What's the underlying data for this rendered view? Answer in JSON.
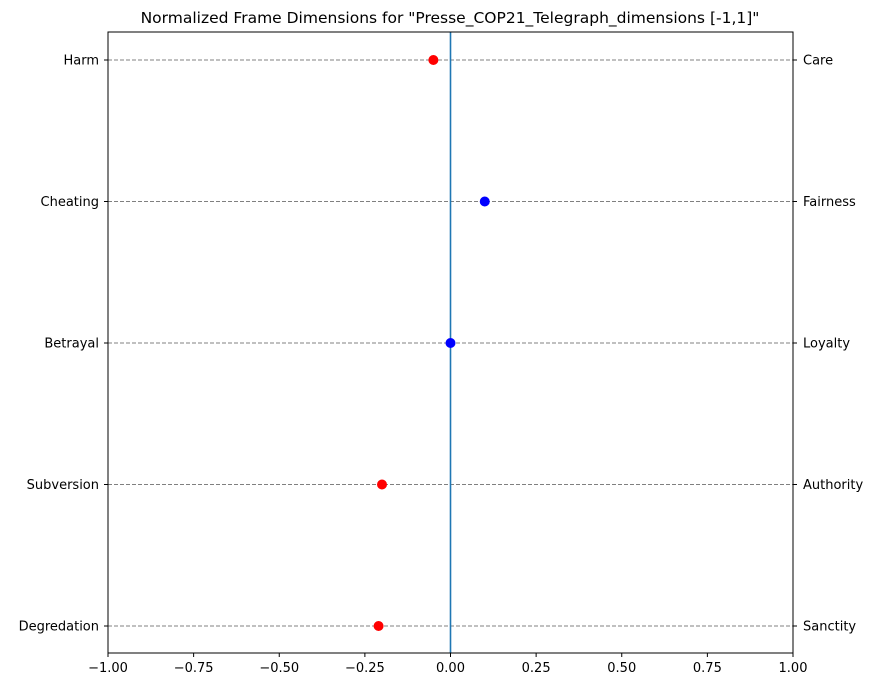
{
  "chart_data": {
    "type": "scatter",
    "title": "Normalized Frame Dimensions for \"Presse_COP21_Telegraph_dimensions [-1,1]\"",
    "xlabel": "",
    "ylabel": "",
    "xlim": [
      -1,
      1
    ],
    "x_ticks": [
      "−1.00",
      "−0.75",
      "−0.50",
      "−0.25",
      "0.00",
      "0.25",
      "0.50",
      "0.75",
      "1.00"
    ],
    "x_tick_values": [
      -1,
      -0.75,
      -0.5,
      -0.25,
      0,
      0.25,
      0.5,
      0.75,
      1
    ],
    "left_labels": [
      "Harm",
      "Cheating",
      "Betrayal",
      "Subversion",
      "Degredation"
    ],
    "right_labels": [
      "Care",
      "Fairness",
      "Loyalty",
      "Authority",
      "Sanctity"
    ],
    "points": [
      {
        "left": "Harm",
        "right": "Care",
        "x": -0.05,
        "color": "#ff0000"
      },
      {
        "left": "Cheating",
        "right": "Fairness",
        "x": 0.1,
        "color": "#0000ff"
      },
      {
        "left": "Betrayal",
        "right": "Loyalty",
        "x": 0.0,
        "color": "#0000ff"
      },
      {
        "left": "Subversion",
        "right": "Authority",
        "x": -0.2,
        "color": "#ff0000"
      },
      {
        "left": "Degredation",
        "right": "Sanctity",
        "x": -0.21,
        "color": "#ff0000"
      }
    ],
    "reference_line": {
      "x": 0,
      "color": "#1f77b4"
    },
    "grid": "horizontal dashed",
    "colors": {
      "negative": "#ff0000",
      "positive": "#0000ff",
      "grid": "#808080"
    }
  }
}
